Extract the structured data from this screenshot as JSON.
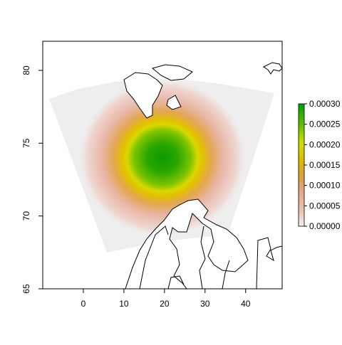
{
  "map": {
    "x_axis": {
      "range": [
        -10,
        49
      ],
      "ticks": [
        "0",
        "10",
        "20",
        "30",
        "40"
      ],
      "tick_values": [
        0,
        10,
        20,
        30,
        40
      ]
    },
    "y_axis": {
      "range": [
        65,
        82
      ],
      "ticks": [
        "65",
        "70",
        "75",
        "80"
      ],
      "tick_values": [
        65,
        70,
        75,
        80
      ]
    },
    "density": {
      "peak_lon": 20.5,
      "peak_lat": 74.0,
      "domain_color": "#eeeeee",
      "coast_color": "#000000"
    }
  },
  "legend": {
    "ticks": [
      "0.00000",
      "0.00005",
      "0.00010",
      "0.00015",
      "0.00020",
      "0.00025",
      "0.00030"
    ],
    "tick_values": [
      0.0,
      5e-05,
      0.0001,
      0.00015,
      0.0002,
      0.00025,
      0.0003
    ],
    "max": 0.0003,
    "colors": [
      "#f0f0f0",
      "#e9b7a9",
      "#e0a35a",
      "#d8b000",
      "#e6e600",
      "#66c200",
      "#00a000"
    ]
  }
}
